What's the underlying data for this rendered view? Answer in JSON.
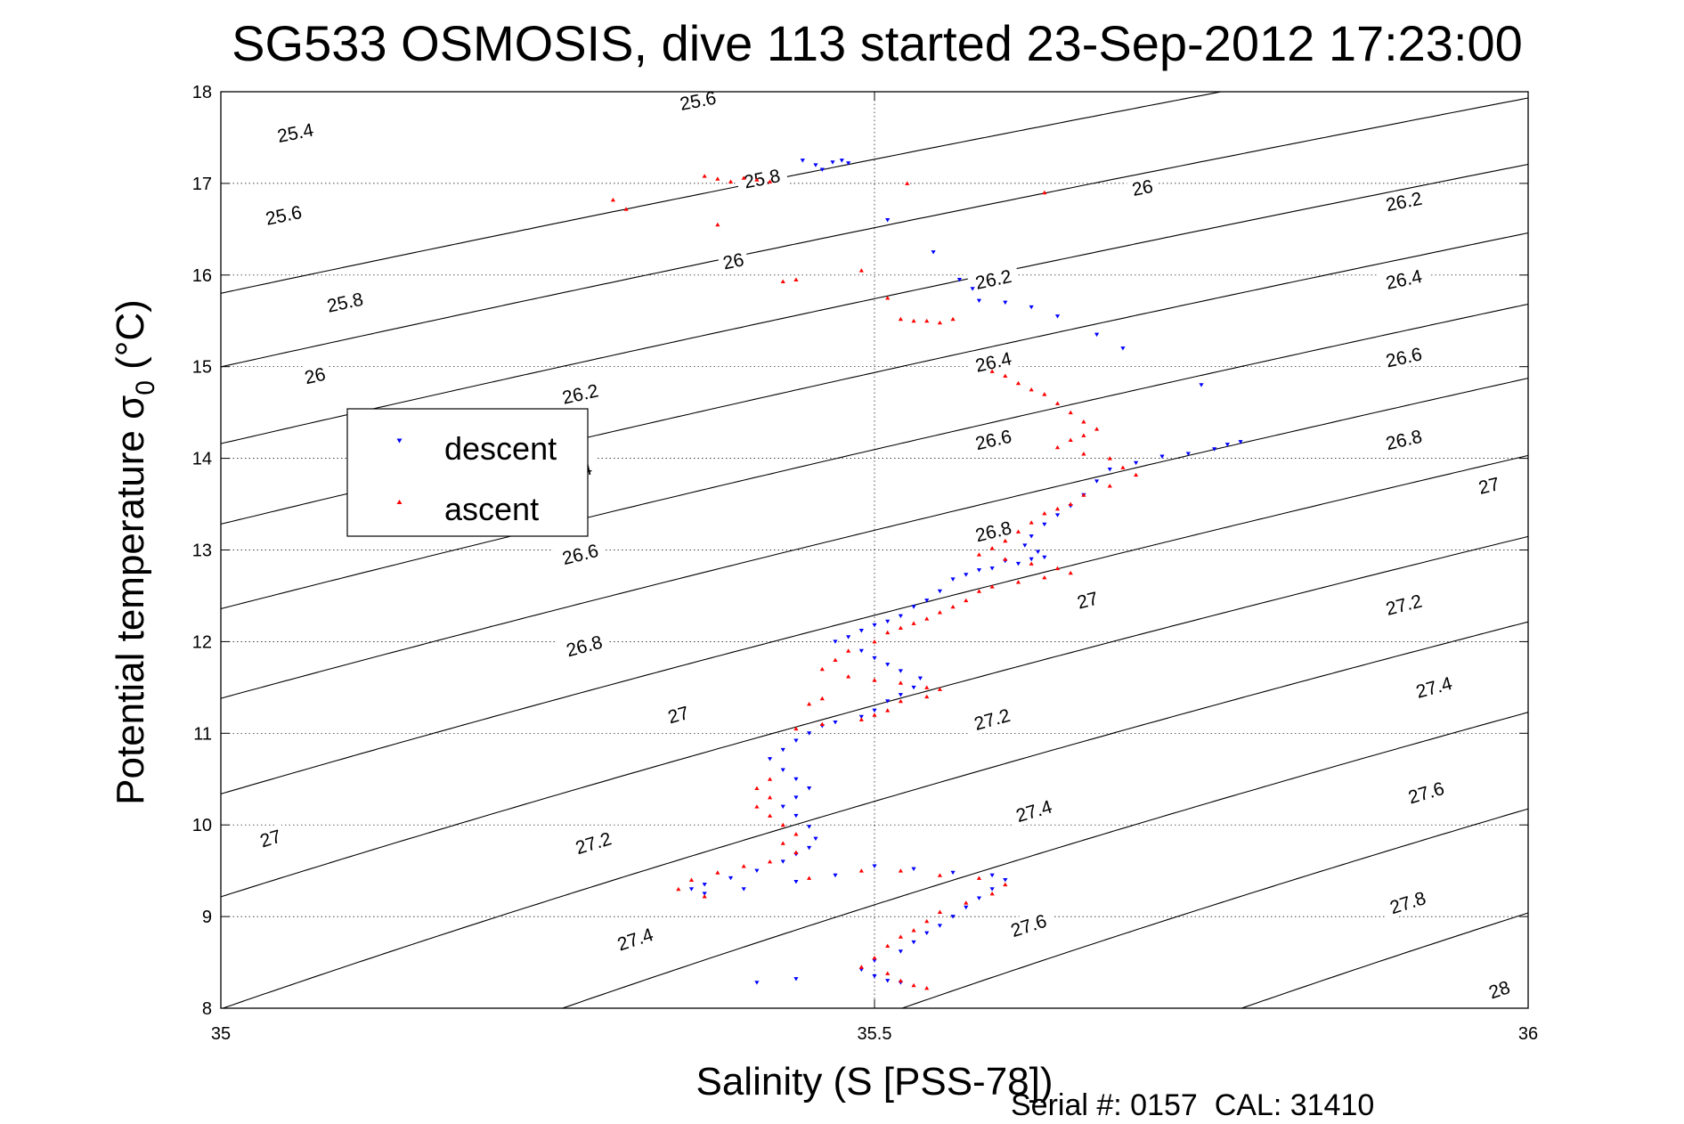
{
  "chart_data": {
    "type": "scatter",
    "title": "SG533 OSMOSIS, dive 113 started 23-Sep-2012 17:23:00",
    "xlabel": "Salinity (S [PSS-78])",
    "ylabel": "Potential temperature",
    "ylabel_symbol": "σ",
    "ylabel_subscript": "0",
    "ylabel_unit": "(°C)",
    "xlim": [
      35,
      36
    ],
    "ylim": [
      8,
      18
    ],
    "x_ticks": [
      "35",
      "35.5",
      "36"
    ],
    "y_ticks": [
      "8",
      "9",
      "10",
      "11",
      "12",
      "13",
      "14",
      "15",
      "16",
      "17",
      "18"
    ],
    "grid": true,
    "legend_position": "left",
    "footer": "Serial #: 0157  CAL: 31410",
    "density_contours": {
      "levels": [
        25.4,
        25.6,
        25.8,
        26,
        26.2,
        26.4,
        26.6,
        26.8,
        27,
        27.2,
        27.4,
        27.6,
        27.8,
        28
      ],
      "level_labels": [
        "25.4",
        "25.6",
        "25.8",
        "26",
        "26.2",
        "26.4",
        "26.6",
        "26.8",
        "27",
        "27.2",
        "27.4",
        "27.6",
        "27.8",
        "28"
      ],
      "labels": [
        {
          "text": "25.4",
          "s": 35.057,
          "t": 17.55
        },
        {
          "text": "25.6",
          "s": 35.048,
          "t": 16.65
        },
        {
          "text": "25.8",
          "s": 35.095,
          "t": 15.7
        },
        {
          "text": "26",
          "s": 35.072,
          "t": 14.9
        },
        {
          "text": "26.2",
          "s": 35.275,
          "t": 14.7
        },
        {
          "text": "26.4",
          "s": 35.27,
          "t": 13.85
        },
        {
          "text": "26.6",
          "s": 35.275,
          "t": 12.95
        },
        {
          "text": "26.8",
          "s": 35.278,
          "t": 11.95
        },
        {
          "text": "27",
          "s": 35.35,
          "t": 11.2
        },
        {
          "text": "27",
          "s": 35.038,
          "t": 9.85
        },
        {
          "text": "27.2",
          "s": 35.285,
          "t": 9.8
        },
        {
          "text": "27.4",
          "s": 35.317,
          "t": 8.75
        },
        {
          "text": "25.6",
          "s": 35.365,
          "t": 17.9
        },
        {
          "text": "25.8",
          "s": 35.414,
          "t": 17.05
        },
        {
          "text": "26",
          "s": 35.392,
          "t": 16.15
        },
        {
          "text": "26.2",
          "s": 35.591,
          "t": 15.95
        },
        {
          "text": "26.4",
          "s": 35.591,
          "t": 15.05
        },
        {
          "text": "26.6",
          "s": 35.591,
          "t": 14.2
        },
        {
          "text": "26.8",
          "s": 35.591,
          "t": 13.2
        },
        {
          "text": "27",
          "s": 35.663,
          "t": 12.45
        },
        {
          "text": "27.2",
          "s": 35.59,
          "t": 11.15
        },
        {
          "text": "27.4",
          "s": 35.622,
          "t": 10.15
        },
        {
          "text": "27.6",
          "s": 35.618,
          "t": 8.9
        },
        {
          "text": "26",
          "s": 35.705,
          "t": 16.95
        },
        {
          "text": "26.2",
          "s": 35.905,
          "t": 16.8
        },
        {
          "text": "26.4",
          "s": 35.905,
          "t": 15.95
        },
        {
          "text": "26.6",
          "s": 35.905,
          "t": 15.1
        },
        {
          "text": "26.8",
          "s": 35.905,
          "t": 14.2
        },
        {
          "text": "27",
          "s": 35.97,
          "t": 13.7
        },
        {
          "text": "27.2",
          "s": 35.905,
          "t": 12.4
        },
        {
          "text": "27.4",
          "s": 35.928,
          "t": 11.5
        },
        {
          "text": "27.6",
          "s": 35.922,
          "t": 10.35
        },
        {
          "text": "27.8",
          "s": 35.908,
          "t": 9.15
        },
        {
          "text": "28",
          "s": 35.978,
          "t": 8.2
        }
      ]
    },
    "series": [
      {
        "name": "descent",
        "color": "#0000ff",
        "marker": "triangle-down",
        "points": [
          [
            35.475,
            17.25
          ],
          [
            35.468,
            17.23
          ],
          [
            35.48,
            17.22
          ],
          [
            35.445,
            17.25
          ],
          [
            35.455,
            17.2
          ],
          [
            35.46,
            17.15
          ],
          [
            35.51,
            16.6
          ],
          [
            35.545,
            16.25
          ],
          [
            35.565,
            15.95
          ],
          [
            35.575,
            15.85
          ],
          [
            35.58,
            15.72
          ],
          [
            35.6,
            15.7
          ],
          [
            35.62,
            15.65
          ],
          [
            35.64,
            15.55
          ],
          [
            35.67,
            15.35
          ],
          [
            35.69,
            15.2
          ],
          [
            35.75,
            14.8
          ],
          [
            35.77,
            14.15
          ],
          [
            35.78,
            14.18
          ],
          [
            35.76,
            14.1
          ],
          [
            35.74,
            14.05
          ],
          [
            35.72,
            14.02
          ],
          [
            35.7,
            13.95
          ],
          [
            35.68,
            13.88
          ],
          [
            35.67,
            13.75
          ],
          [
            35.66,
            13.6
          ],
          [
            35.65,
            13.48
          ],
          [
            35.64,
            13.38
          ],
          [
            35.63,
            13.28
          ],
          [
            35.62,
            13.15
          ],
          [
            35.615,
            13.05
          ],
          [
            35.625,
            12.98
          ],
          [
            35.63,
            12.92
          ],
          [
            35.62,
            12.9
          ],
          [
            35.61,
            12.85
          ],
          [
            35.6,
            12.88
          ],
          [
            35.59,
            12.8
          ],
          [
            35.58,
            12.78
          ],
          [
            35.57,
            12.73
          ],
          [
            35.56,
            12.68
          ],
          [
            35.55,
            12.55
          ],
          [
            35.54,
            12.45
          ],
          [
            35.53,
            12.38
          ],
          [
            35.52,
            12.28
          ],
          [
            35.51,
            12.22
          ],
          [
            35.5,
            12.18
          ],
          [
            35.49,
            12.12
          ],
          [
            35.48,
            12.05
          ],
          [
            35.47,
            12.0
          ],
          [
            35.49,
            11.9
          ],
          [
            35.5,
            11.82
          ],
          [
            35.51,
            11.75
          ],
          [
            35.52,
            11.68
          ],
          [
            35.535,
            11.6
          ],
          [
            35.53,
            11.5
          ],
          [
            35.52,
            11.42
          ],
          [
            35.51,
            11.35
          ],
          [
            35.5,
            11.25
          ],
          [
            35.49,
            11.18
          ],
          [
            35.47,
            11.12
          ],
          [
            35.46,
            11.08
          ],
          [
            35.45,
            11.0
          ],
          [
            35.44,
            10.92
          ],
          [
            35.43,
            10.82
          ],
          [
            35.42,
            10.72
          ],
          [
            35.43,
            10.6
          ],
          [
            35.44,
            10.5
          ],
          [
            35.45,
            10.4
          ],
          [
            35.44,
            10.3
          ],
          [
            35.43,
            10.2
          ],
          [
            35.44,
            10.1
          ],
          [
            35.45,
            9.98
          ],
          [
            35.455,
            9.85
          ],
          [
            35.45,
            9.75
          ],
          [
            35.44,
            9.68
          ],
          [
            35.43,
            9.6
          ],
          [
            35.41,
            9.5
          ],
          [
            35.39,
            9.42
          ],
          [
            35.37,
            9.35
          ],
          [
            35.36,
            9.3
          ],
          [
            35.37,
            9.25
          ],
          [
            35.4,
            9.3
          ],
          [
            35.44,
            9.38
          ],
          [
            35.47,
            9.45
          ],
          [
            35.5,
            9.55
          ],
          [
            35.53,
            9.52
          ],
          [
            35.56,
            9.48
          ],
          [
            35.59,
            9.45
          ],
          [
            35.6,
            9.4
          ],
          [
            35.59,
            9.3
          ],
          [
            35.58,
            9.2
          ],
          [
            35.57,
            9.1
          ],
          [
            35.56,
            9.0
          ],
          [
            35.55,
            8.9
          ],
          [
            35.54,
            8.82
          ],
          [
            35.53,
            8.72
          ],
          [
            35.52,
            8.62
          ],
          [
            35.5,
            8.52
          ],
          [
            35.49,
            8.42
          ],
          [
            35.5,
            8.35
          ],
          [
            35.51,
            8.3
          ],
          [
            35.52,
            8.28
          ],
          [
            35.41,
            8.28
          ],
          [
            35.44,
            8.32
          ]
        ]
      },
      {
        "name": "ascent",
        "color": "#ff0000",
        "marker": "triangle-up",
        "points": [
          [
            35.37,
            17.08
          ],
          [
            35.38,
            17.05
          ],
          [
            35.39,
            17.02
          ],
          [
            35.4,
            17.06
          ],
          [
            35.41,
            17.04
          ],
          [
            35.42,
            17.02
          ],
          [
            35.3,
            16.82
          ],
          [
            35.31,
            16.72
          ],
          [
            35.38,
            16.55
          ],
          [
            35.43,
            15.93
          ],
          [
            35.44,
            15.95
          ],
          [
            35.49,
            16.05
          ],
          [
            35.51,
            15.75
          ],
          [
            35.52,
            15.52
          ],
          [
            35.53,
            15.5
          ],
          [
            35.54,
            15.5
          ],
          [
            35.55,
            15.48
          ],
          [
            35.56,
            15.52
          ],
          [
            35.63,
            16.9
          ],
          [
            35.525,
            17.0
          ],
          [
            35.59,
            14.95
          ],
          [
            35.6,
            14.9
          ],
          [
            35.61,
            14.82
          ],
          [
            35.62,
            14.75
          ],
          [
            35.63,
            14.7
          ],
          [
            35.64,
            14.6
          ],
          [
            35.65,
            14.5
          ],
          [
            35.66,
            14.4
          ],
          [
            35.67,
            14.32
          ],
          [
            35.66,
            14.25
          ],
          [
            35.65,
            14.2
          ],
          [
            35.64,
            14.12
          ],
          [
            35.66,
            14.05
          ],
          [
            35.68,
            14.0
          ],
          [
            35.69,
            13.9
          ],
          [
            35.7,
            13.82
          ],
          [
            35.68,
            13.7
          ],
          [
            35.66,
            13.6
          ],
          [
            35.65,
            13.5
          ],
          [
            35.64,
            13.45
          ],
          [
            35.63,
            13.4
          ],
          [
            35.62,
            13.3
          ],
          [
            35.61,
            13.2
          ],
          [
            35.6,
            13.1
          ],
          [
            35.59,
            13.02
          ],
          [
            35.58,
            12.95
          ],
          [
            35.6,
            12.9
          ],
          [
            35.62,
            12.85
          ],
          [
            35.64,
            12.8
          ],
          [
            35.65,
            12.75
          ],
          [
            35.63,
            12.7
          ],
          [
            35.61,
            12.65
          ],
          [
            35.59,
            12.6
          ],
          [
            35.58,
            12.55
          ],
          [
            35.57,
            12.45
          ],
          [
            35.56,
            12.38
          ],
          [
            35.55,
            12.32
          ],
          [
            35.54,
            12.25
          ],
          [
            35.53,
            12.2
          ],
          [
            35.52,
            12.15
          ],
          [
            35.51,
            12.1
          ],
          [
            35.5,
            12.0
          ],
          [
            35.48,
            11.9
          ],
          [
            35.47,
            11.8
          ],
          [
            35.46,
            11.7
          ],
          [
            35.48,
            11.62
          ],
          [
            35.5,
            11.58
          ],
          [
            35.52,
            11.55
          ],
          [
            35.54,
            11.5
          ],
          [
            35.55,
            11.48
          ],
          [
            35.54,
            11.4
          ],
          [
            35.52,
            11.35
          ],
          [
            35.51,
            11.25
          ],
          [
            35.5,
            11.2
          ],
          [
            35.49,
            11.15
          ],
          [
            35.46,
            11.1
          ],
          [
            35.44,
            11.05
          ],
          [
            35.46,
            11.38
          ],
          [
            35.45,
            11.32
          ],
          [
            35.42,
            10.5
          ],
          [
            35.41,
            10.4
          ],
          [
            35.42,
            10.3
          ],
          [
            35.41,
            10.2
          ],
          [
            35.42,
            10.1
          ],
          [
            35.43,
            10.0
          ],
          [
            35.44,
            9.9
          ],
          [
            35.43,
            9.8
          ],
          [
            35.44,
            9.7
          ],
          [
            35.42,
            9.6
          ],
          [
            35.4,
            9.55
          ],
          [
            35.38,
            9.48
          ],
          [
            35.36,
            9.4
          ],
          [
            35.35,
            9.3
          ],
          [
            35.37,
            9.22
          ],
          [
            35.45,
            9.42
          ],
          [
            35.49,
            9.5
          ],
          [
            35.52,
            9.5
          ],
          [
            35.55,
            9.45
          ],
          [
            35.58,
            9.42
          ],
          [
            35.6,
            9.35
          ],
          [
            35.59,
            9.25
          ],
          [
            35.57,
            9.15
          ],
          [
            35.55,
            9.05
          ],
          [
            35.54,
            8.95
          ],
          [
            35.53,
            8.85
          ],
          [
            35.52,
            8.78
          ],
          [
            35.51,
            8.68
          ],
          [
            35.5,
            8.55
          ],
          [
            35.49,
            8.45
          ],
          [
            35.51,
            8.38
          ],
          [
            35.52,
            8.3
          ],
          [
            35.53,
            8.25
          ],
          [
            35.54,
            8.22
          ]
        ]
      }
    ]
  }
}
